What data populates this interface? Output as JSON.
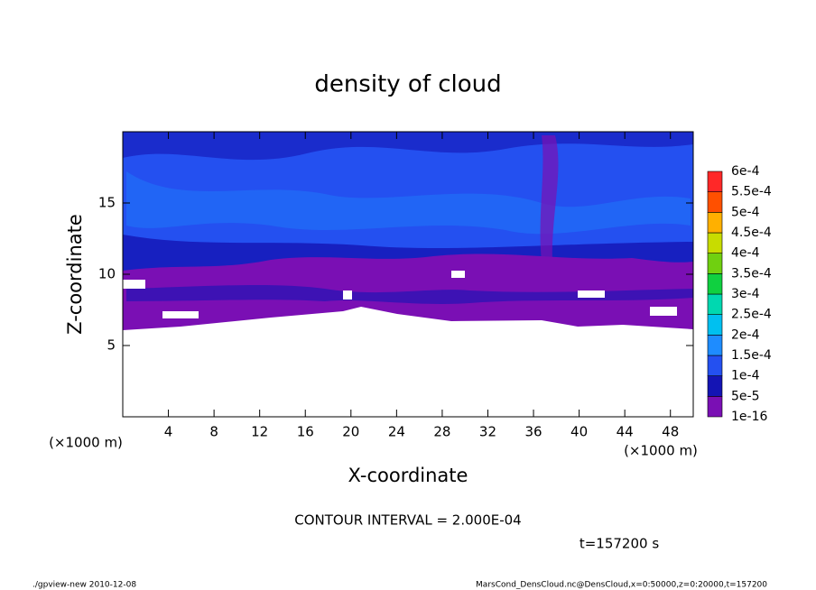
{
  "chart_data": {
    "type": "contour",
    "title": "density of cloud",
    "x_label": "X-coordinate",
    "y_label": "Z-coordinate",
    "x_unit": "(×1000 m)",
    "y_unit": "(×1000 m)",
    "xlim": [
      0,
      50
    ],
    "xticks": [
      4,
      8,
      12,
      16,
      20,
      24,
      28,
      32,
      36,
      40,
      44,
      48
    ],
    "ylim": [
      0,
      20
    ],
    "yticks": [
      5,
      10,
      15
    ],
    "colorbar": {
      "levels": [
        {
          "value": 1e-16,
          "label": "1e-16"
        },
        {
          "value": 5e-05,
          "label": "5e-5"
        },
        {
          "value": 0.0001,
          "label": "1e-4"
        },
        {
          "value": 0.00015,
          "label": "1.5e-4"
        },
        {
          "value": 0.0002,
          "label": "2e-4"
        },
        {
          "value": 0.00025,
          "label": "2.5e-4"
        },
        {
          "value": 0.0003,
          "label": "3e-4"
        },
        {
          "value": 0.00035,
          "label": "3.5e-4"
        },
        {
          "value": 0.0004,
          "label": "4e-4"
        },
        {
          "value": 0.00045,
          "label": "4.5e-4"
        },
        {
          "value": 0.0005,
          "label": "5e-4"
        },
        {
          "value": 0.00055,
          "label": "5.5e-4"
        },
        {
          "value": 0.0006,
          "label": "6e-4"
        }
      ],
      "colors": [
        "#7a0fb4",
        "#1414b4",
        "#2450f0",
        "#1e8cff",
        "#00c0f0",
        "#00d8b0",
        "#10d040",
        "#70d010",
        "#c8dc00",
        "#ffb000",
        "#ff5000",
        "#ff2828",
        "#ff8c8c"
      ]
    },
    "annotations": {
      "contour_interval": "CONTOUR INTERVAL = 2.000E-04",
      "time": "t=157200 s",
      "footer_left": "./gpview-new  2010-12-08",
      "footer_right": "MarsCond_DensCloud.nc@DensCloud,x=0:50000,z=0:20000,t=157200"
    }
  }
}
